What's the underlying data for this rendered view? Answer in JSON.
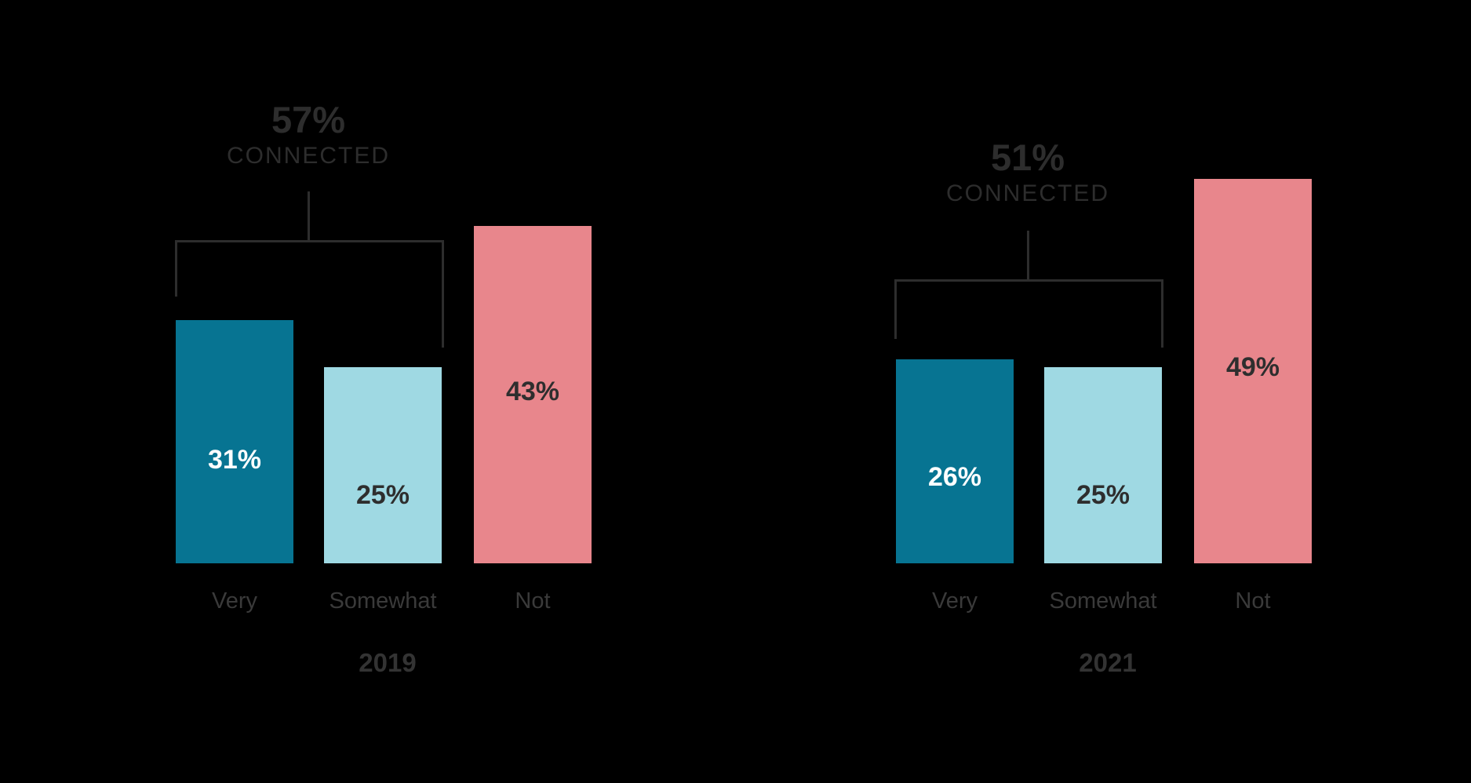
{
  "background": "#000000",
  "chart_data": {
    "type": "bar",
    "unit": "percent",
    "ylim": [
      0,
      50
    ],
    "grid": false,
    "legend_position": "none",
    "colors": {
      "very": "#077492",
      "somewhat": "#9FD9E3",
      "not": "#E8868C"
    },
    "value_text_colors": {
      "very": "#FFFFFF",
      "somewhat": "#2E2E2E",
      "not": "#2E2E2E"
    },
    "line_color": "#2D2D2D",
    "groups": [
      {
        "year": "2019",
        "summary_value": "57%",
        "summary_label": "CONNECTED",
        "categories": [
          "Very",
          "Somewhat",
          "Not"
        ],
        "values": [
          31,
          25,
          43
        ],
        "value_labels": [
          "31%",
          "25%",
          "43%"
        ]
      },
      {
        "year": "2021",
        "summary_value": "51%",
        "summary_label": "CONNECTED",
        "categories": [
          "Very",
          "Somewhat",
          "Not"
        ],
        "values": [
          26,
          25,
          49
        ],
        "value_labels": [
          "26%",
          "25%",
          "49%"
        ]
      }
    ]
  }
}
